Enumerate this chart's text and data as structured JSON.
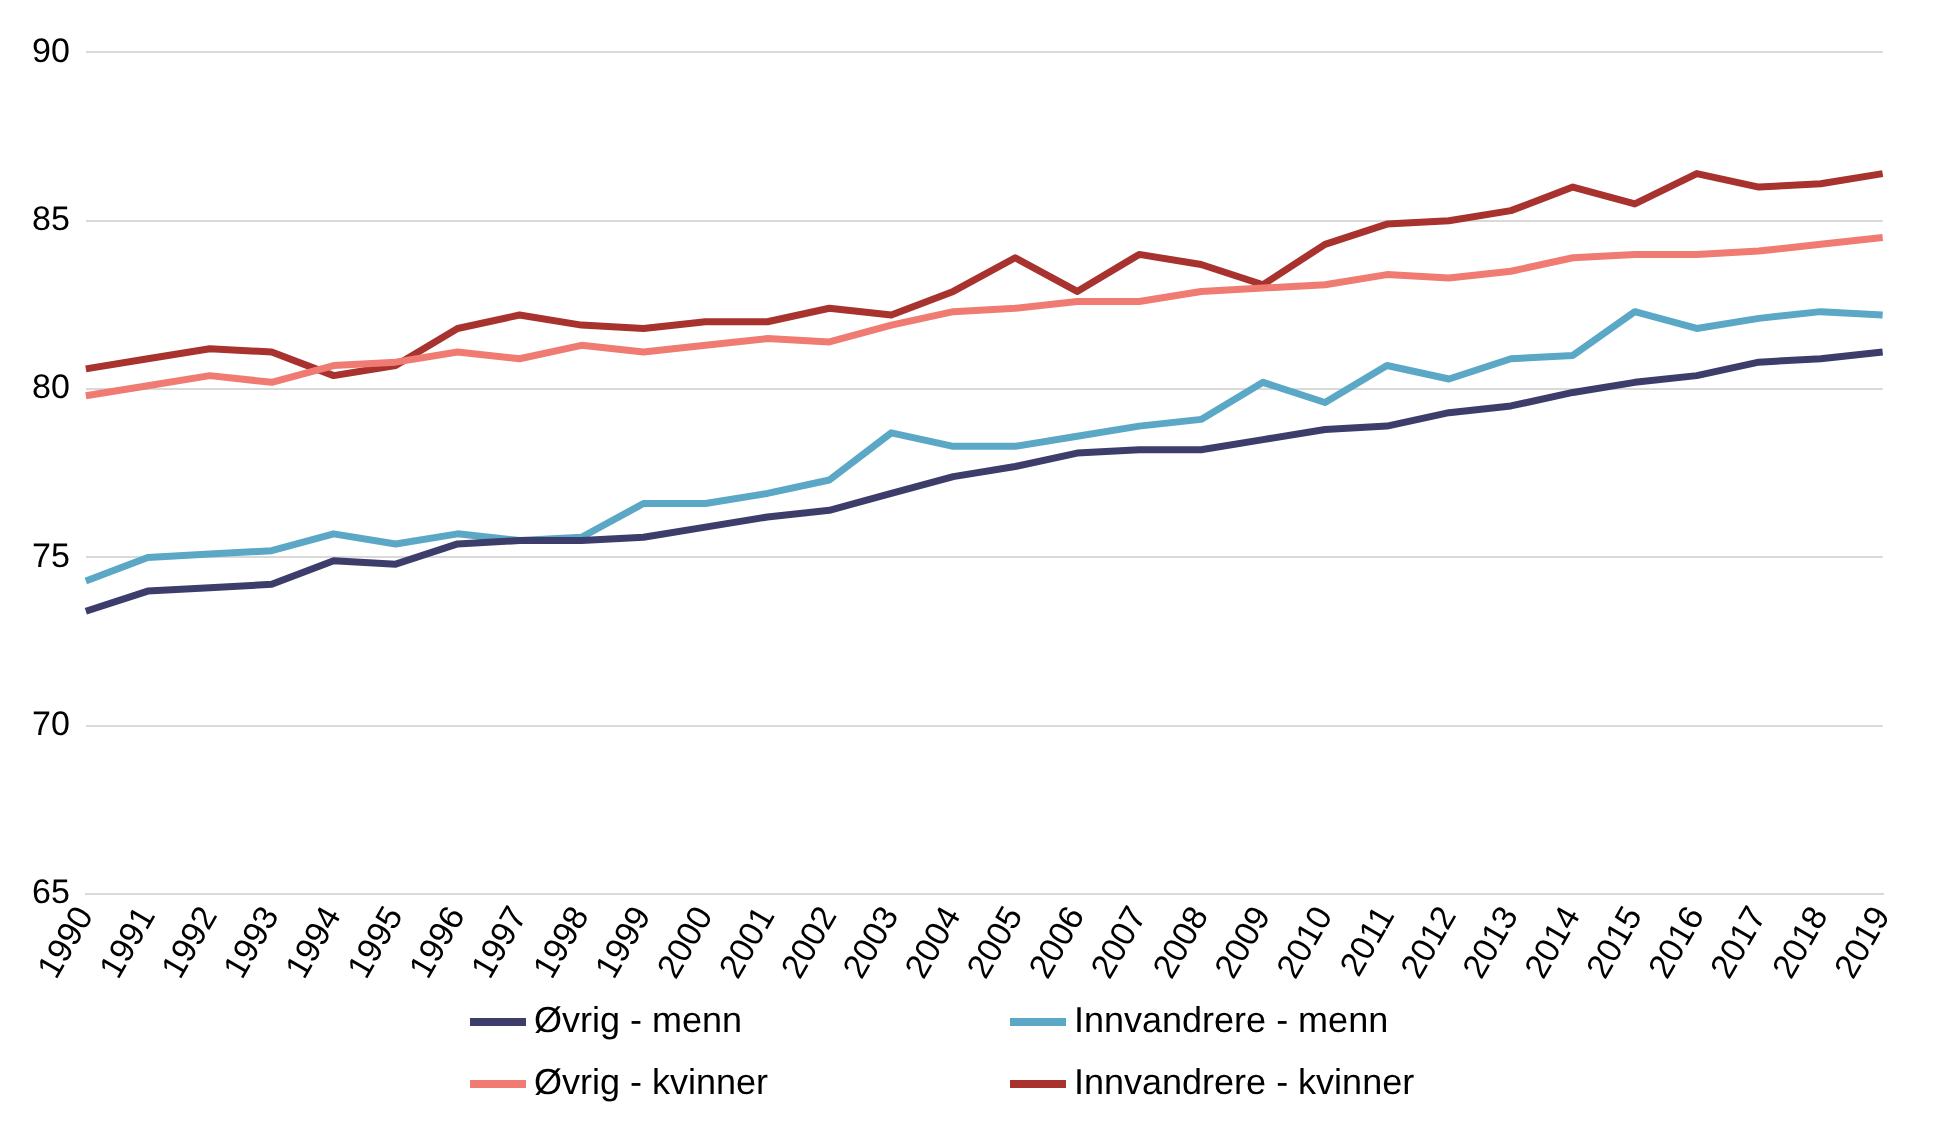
{
  "chart_data": {
    "type": "line",
    "categories": [
      "1990",
      "1991",
      "1992",
      "1993",
      "1994",
      "1995",
      "1996",
      "1997",
      "1998",
      "1999",
      "2000",
      "2001",
      "2002",
      "2003",
      "2004",
      "2005",
      "2006",
      "2007",
      "2008",
      "2009",
      "2010",
      "2011",
      "2012",
      "2013",
      "2014",
      "2015",
      "2016",
      "2017",
      "2018",
      "2019"
    ],
    "series": [
      {
        "name": "Øvrig - menn",
        "color": "#3c3d6b",
        "values": [
          73.4,
          74.0,
          74.1,
          74.2,
          74.9,
          74.8,
          75.4,
          75.5,
          75.5,
          75.6,
          75.9,
          76.2,
          76.4,
          76.9,
          77.4,
          77.7,
          78.1,
          78.2,
          78.2,
          78.5,
          78.8,
          78.9,
          79.3,
          79.5,
          79.9,
          80.2,
          80.4,
          80.8,
          80.9,
          81.1
        ]
      },
      {
        "name": "Innvandrere - menn",
        "color": "#5ba8c6",
        "values": [
          74.3,
          75.0,
          75.1,
          75.2,
          75.7,
          75.4,
          75.7,
          75.5,
          75.6,
          76.6,
          76.6,
          76.9,
          77.3,
          78.7,
          78.3,
          78.3,
          78.6,
          78.9,
          79.1,
          80.2,
          79.6,
          80.7,
          80.3,
          80.9,
          81.0,
          82.3,
          81.8,
          82.1,
          82.3,
          82.2
        ]
      },
      {
        "name": "Øvrig - kvinner",
        "color": "#f07b72",
        "values": [
          79.8,
          80.1,
          80.4,
          80.2,
          80.7,
          80.8,
          81.1,
          80.9,
          81.3,
          81.1,
          81.3,
          81.5,
          81.4,
          81.9,
          82.3,
          82.4,
          82.6,
          82.6,
          82.9,
          83.0,
          83.1,
          83.4,
          83.3,
          83.5,
          83.9,
          84.0,
          84.0,
          84.1,
          84.3,
          84.5
        ]
      },
      {
        "name": "Innvandrere - kvinner",
        "color": "#a8322e",
        "values": [
          80.6,
          80.9,
          81.2,
          81.1,
          80.4,
          80.7,
          81.8,
          82.2,
          81.9,
          81.8,
          82.0,
          82.0,
          82.4,
          82.2,
          82.9,
          83.9,
          82.9,
          84.0,
          83.7,
          83.1,
          84.3,
          84.9,
          85.0,
          85.3,
          86.0,
          85.5,
          86.4,
          86.0,
          86.1,
          86.4
        ]
      }
    ],
    "ylim": [
      65,
      90
    ],
    "yticks": [
      65,
      70,
      75,
      80,
      85,
      90
    ],
    "grid": "y",
    "legend": "bottom",
    "marker": "none",
    "line_style": "solid"
  }
}
